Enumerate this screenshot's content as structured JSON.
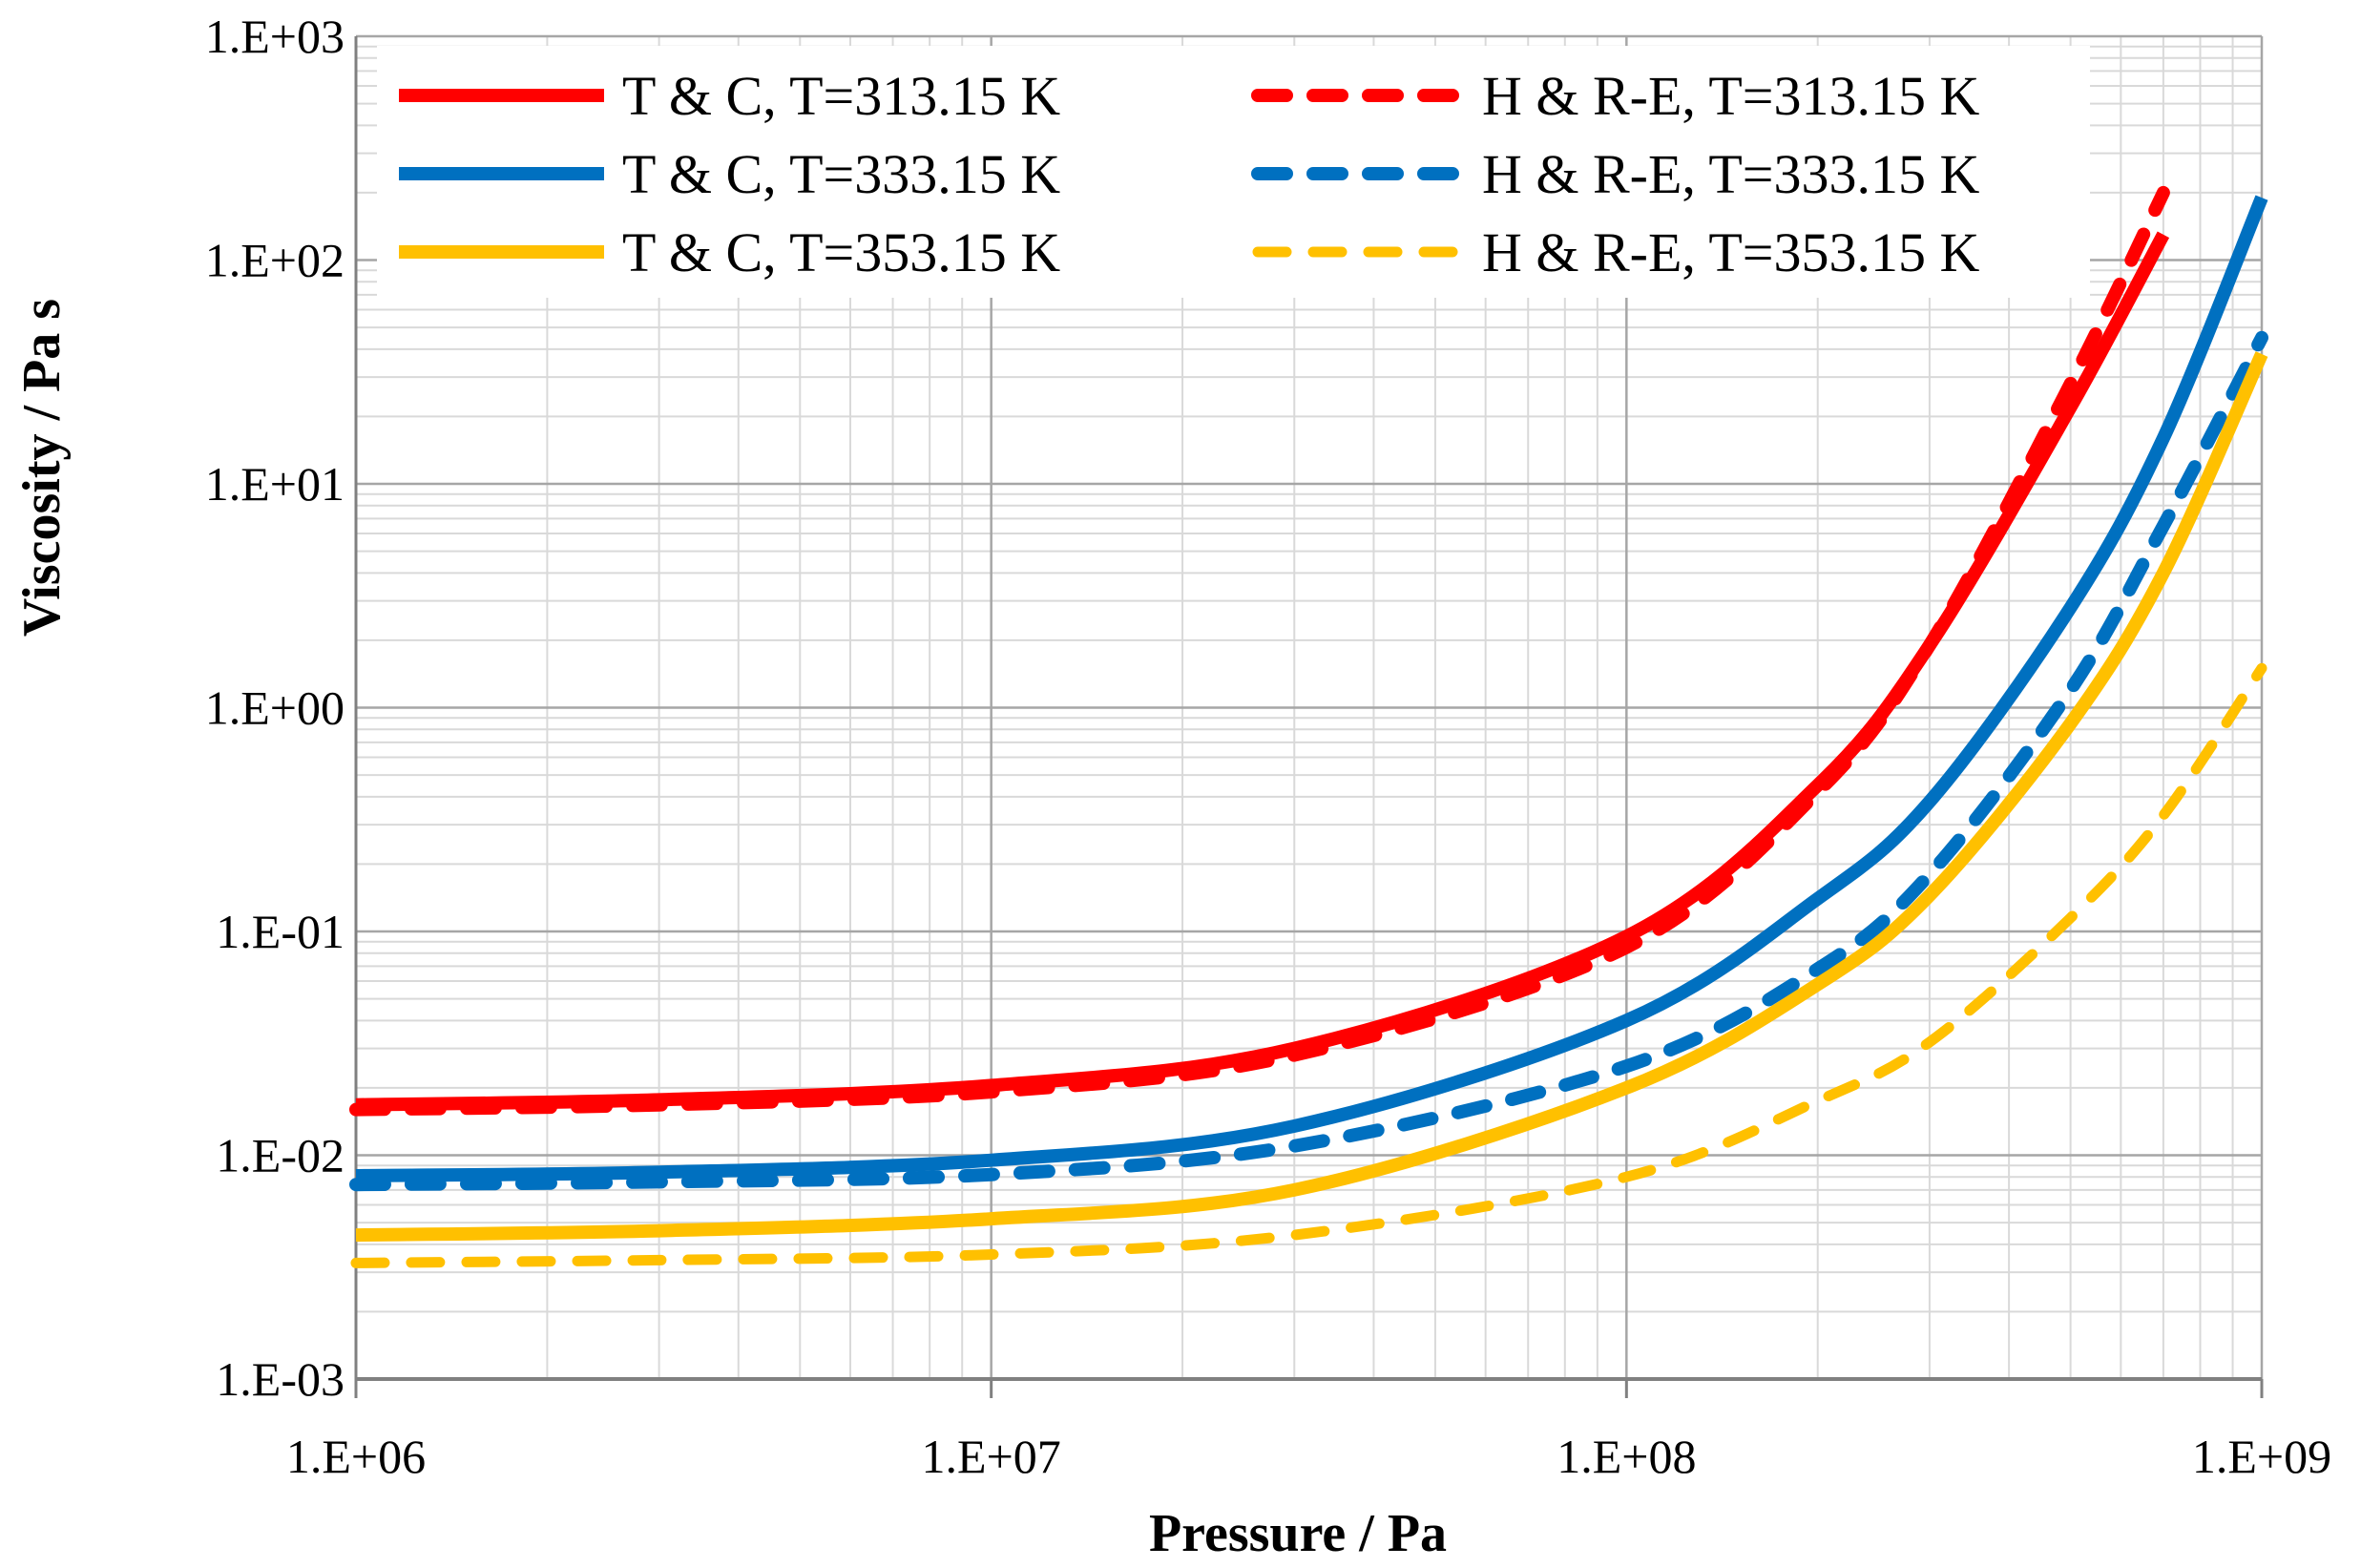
{
  "chart_data": {
    "type": "line",
    "title": "",
    "xlabel": "Pressure / Pa",
    "ylabel": "Viscosity / Pa s",
    "xscale": "log",
    "yscale": "log",
    "xlim": [
      1000000,
      1000000000
    ],
    "ylim": [
      0.001,
      1000
    ],
    "grid": true,
    "legend_position": "top",
    "x_tick_labels": [
      "1.E+06",
      "1.E+07",
      "1.E+08",
      "1.E+09"
    ],
    "y_tick_labels": [
      "1.E-03",
      "1.E-02",
      "1.E-01",
      "1.E+00",
      "1.E+01",
      "1.E+02",
      "1.E+03"
    ],
    "x": [
      1000000,
      3000000,
      10000000,
      30000000,
      100000000,
      200000000,
      300000000,
      500000000,
      700000000,
      1000000000
    ],
    "series": [
      {
        "name": "T & C, T=313.15 K",
        "color": "#FF0000",
        "style": "solid",
        "values": [
          0.0168,
          0.0177,
          0.0205,
          0.03,
          0.095,
          0.45,
          1.9,
          22.0,
          130.0,
          null
        ]
      },
      {
        "name": "T & C, T=333.15 K",
        "color": "#0070C0",
        "style": "solid",
        "values": [
          0.0081,
          0.0084,
          0.0095,
          0.0135,
          0.04,
          0.14,
          0.38,
          2.8,
          16.0,
          190.0
        ]
      },
      {
        "name": "T & C, T=353.15 K",
        "color": "#FFC000",
        "style": "solid",
        "values": [
          0.0044,
          0.0046,
          0.0052,
          0.007,
          0.02,
          0.058,
          0.145,
          0.85,
          4.0,
          38.0
        ]
      },
      {
        "name": "H & R-E, T=313.15 K",
        "color": "#FF0000",
        "style": "dashed",
        "values": [
          0.016,
          0.0168,
          0.0192,
          0.028,
          0.085,
          0.42,
          1.9,
          28.0,
          200.0,
          null
        ]
      },
      {
        "name": "H & R-E, T=333.15 K",
        "color": "#0070C0",
        "style": "dashed",
        "values": [
          0.0074,
          0.0076,
          0.0082,
          0.011,
          0.025,
          0.068,
          0.18,
          1.2,
          6.5,
          45.0
        ]
      },
      {
        "name": "H & R-E, T=353.15 K",
        "color": "#FFC000",
        "style": "dashed",
        "values": [
          0.0033,
          0.0034,
          0.0036,
          0.0044,
          0.008,
          0.0175,
          0.032,
          0.115,
          0.33,
          1.5
        ]
      }
    ]
  }
}
